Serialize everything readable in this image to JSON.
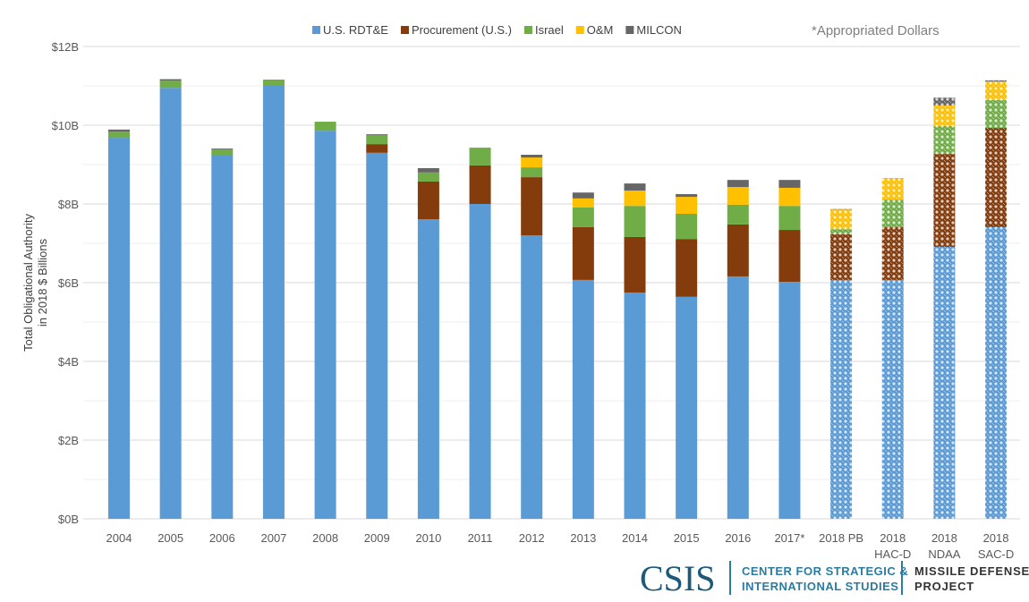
{
  "chart_data": {
    "type": "bar",
    "stacked": true,
    "title": "",
    "note": "*Appropriated Dollars",
    "xlabel": "",
    "ylabel": [
      "Total Obligational Authority",
      "in 2018 $ Billions"
    ],
    "ylim": [
      0,
      12
    ],
    "yticks": [
      0,
      2,
      4,
      6,
      8,
      10,
      12
    ],
    "ytick_labels": [
      "$0B",
      "$2B",
      "$4B",
      "$6B",
      "$8B",
      "$10B",
      "$12B"
    ],
    "grid": true,
    "legend_position": "top",
    "categories": [
      [
        "2004"
      ],
      [
        "2005"
      ],
      [
        "2006"
      ],
      [
        "2007"
      ],
      [
        "2008"
      ],
      [
        "2009"
      ],
      [
        "2010"
      ],
      [
        "2011"
      ],
      [
        "2012"
      ],
      [
        "2013"
      ],
      [
        "2014"
      ],
      [
        "2015"
      ],
      [
        "2016"
      ],
      [
        "2017*"
      ],
      [
        "2018 PB"
      ],
      [
        "2018",
        "HAC-D"
      ],
      [
        "2018",
        "NDAA"
      ],
      [
        "2018",
        "SAC-D"
      ]
    ],
    "projected": [
      false,
      false,
      false,
      false,
      false,
      false,
      false,
      false,
      false,
      false,
      false,
      false,
      false,
      false,
      true,
      true,
      true,
      true
    ],
    "series": [
      {
        "name": "U.S. RDT&E",
        "color": "#5b9bd5",
        "values": [
          9.68,
          10.95,
          9.25,
          11.0,
          9.86,
          9.3,
          7.61,
          8.0,
          7.2,
          6.07,
          5.75,
          5.64,
          6.16,
          6.02,
          6.07,
          6.07,
          6.91,
          7.41
        ]
      },
      {
        "name": "Procurement (U.S.)",
        "color": "#843c0c",
        "values": [
          0,
          0,
          0,
          0,
          0,
          0.22,
          0.96,
          0.98,
          1.48,
          1.34,
          1.41,
          1.47,
          1.32,
          1.32,
          1.16,
          1.34,
          2.36,
          2.52
        ]
      },
      {
        "name": "Israel",
        "color": "#70ad47",
        "values": [
          0.16,
          0.18,
          0.14,
          0.16,
          0.23,
          0.23,
          0.23,
          0.45,
          0.25,
          0.5,
          0.79,
          0.64,
          0.5,
          0.61,
          0.13,
          0.7,
          0.71,
          0.71
        ]
      },
      {
        "name": "O&M",
        "color": "#ffc000",
        "values": [
          0,
          0,
          0,
          0,
          0,
          0,
          0,
          0,
          0.25,
          0.23,
          0.39,
          0.43,
          0.45,
          0.46,
          0.5,
          0.53,
          0.52,
          0.47
        ]
      },
      {
        "name": "MILCON",
        "color": "#666666",
        "values": [
          0.05,
          0.04,
          0.02,
          0,
          0,
          0.02,
          0.11,
          0,
          0.07,
          0.15,
          0.18,
          0.07,
          0.18,
          0.2,
          0.01,
          0.01,
          0.2,
          0.03
        ]
      }
    ]
  },
  "logo": {
    "main": "CSIS",
    "org_line1": "CENTER FOR STRATEGIC &",
    "org_line2": "INTERNATIONAL STUDIES",
    "project_line1": "MISSILE DEFENSE",
    "project_line2": "PROJECT"
  }
}
